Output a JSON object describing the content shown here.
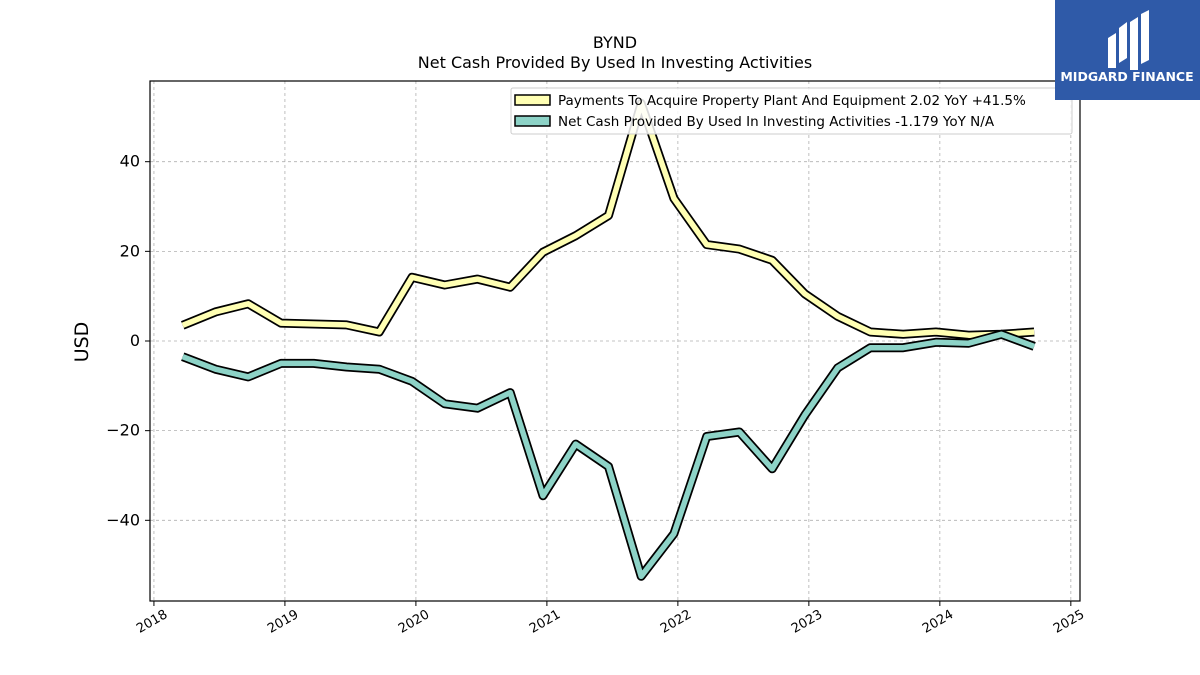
{
  "chart_data": {
    "type": "line",
    "title": "BYND",
    "subtitle": "Net Cash Provided By Used In Investing Activities",
    "ylabel": "USD",
    "xlabel": "",
    "xlim": [
      2017.97,
      2025.07
    ],
    "ylim": [
      -58,
      58
    ],
    "yticks": [
      -40,
      -20,
      0,
      20,
      40
    ],
    "ytick_labels": [
      "−40",
      "−20",
      "0",
      "20",
      "40"
    ],
    "xticks": [
      2018,
      2019,
      2020,
      2021,
      2022,
      2023,
      2024,
      2025
    ],
    "xtick_labels": [
      "2018",
      "2019",
      "2020",
      "2021",
      "2022",
      "2023",
      "2024",
      "2025"
    ],
    "grid": true,
    "legend_position": "top-right",
    "x": [
      2018.22,
      2018.47,
      2018.72,
      2018.97,
      2019.22,
      2019.47,
      2019.72,
      2019.97,
      2020.22,
      2020.47,
      2020.72,
      2020.97,
      2021.22,
      2021.47,
      2021.72,
      2021.97,
      2022.22,
      2022.47,
      2022.72,
      2022.97,
      2023.22,
      2023.47,
      2023.72,
      2023.97,
      2024.22,
      2024.47,
      2024.72
    ],
    "series": [
      {
        "name": "Payments To Acquire Property Plant And Equipment  2.02 YoY +41.5%",
        "color": "#ffffb3",
        "values": [
          3.5,
          6.5,
          8.3,
          4.0,
          3.8,
          3.6,
          2.0,
          14.2,
          12.5,
          13.8,
          12.0,
          19.8,
          23.5,
          28.0,
          53.0,
          31.8,
          21.5,
          20.5,
          18.0,
          10.5,
          5.5,
          2.0,
          1.5,
          2.0,
          1.3,
          1.5,
          2.0
        ]
      },
      {
        "name": "Net Cash Provided By Used In Investing Activities  -1.179 YoY N/A",
        "color": "#8dd3c7",
        "values": [
          -3.5,
          -6.3,
          -8.0,
          -5.0,
          -5.0,
          -5.8,
          -6.3,
          -9.0,
          -14.0,
          -15.0,
          -11.5,
          -34.5,
          -23.0,
          -28.0,
          -52.5,
          -43.0,
          -21.3,
          -20.3,
          -28.5,
          -16.5,
          -6.0,
          -1.5,
          -1.5,
          -0.3,
          -0.5,
          1.5,
          -1.2
        ]
      }
    ]
  },
  "logo": {
    "brand": "MIDGARD FINANCE",
    "background": "#2f5aa8"
  }
}
